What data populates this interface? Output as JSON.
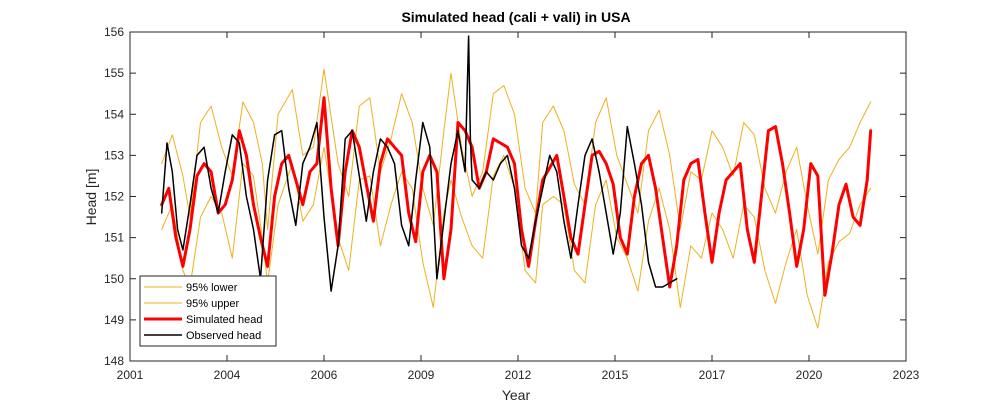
{
  "chart_data": {
    "type": "line",
    "title": "Simulated head (cali + vali) in USA",
    "xlabel": "Year",
    "ylabel": "Head [m]",
    "xlim": [
      2001,
      2023
    ],
    "ylim": [
      148,
      156
    ],
    "x_ticks": [
      {
        "value": 2001.0,
        "label": "2001"
      },
      {
        "value": 2003.75,
        "label": "2004"
      },
      {
        "value": 2006.5,
        "label": "2006"
      },
      {
        "value": 2009.25,
        "label": "2009"
      },
      {
        "value": 2012.0,
        "label": "2012"
      },
      {
        "value": 2014.75,
        "label": "2015"
      },
      {
        "value": 2017.5,
        "label": "2017"
      },
      {
        "value": 2020.25,
        "label": "2020"
      },
      {
        "value": 2023.0,
        "label": "2023"
      }
    ],
    "y_ticks": [
      148,
      149,
      150,
      151,
      152,
      153,
      154,
      155,
      156
    ],
    "grid": false,
    "legend_position": "bottom-left",
    "series": [
      {
        "name": "95% lower",
        "color": "#EDB120",
        "width": 1,
        "x": [
          2001.9,
          2002.2,
          2002.5,
          2002.7,
          2003.0,
          2003.3,
          2003.6,
          2003.9,
          2004.2,
          2004.5,
          2004.75,
          2004.9,
          2005.2,
          2005.6,
          2005.9,
          2006.2,
          2006.5,
          2006.9,
          2007.2,
          2007.5,
          2007.8,
          2008.1,
          2008.4,
          2008.7,
          2009.0,
          2009.3,
          2009.6,
          2009.9,
          2010.1,
          2010.4,
          2010.7,
          2011.0,
          2011.3,
          2011.6,
          2011.9,
          2012.2,
          2012.5,
          2012.7,
          2013.0,
          2013.3,
          2013.6,
          2013.9,
          2014.2,
          2014.5,
          2014.8,
          2015.1,
          2015.4,
          2015.7,
          2016.0,
          2016.3,
          2016.6,
          2016.9,
          2017.2,
          2017.5,
          2017.8,
          2018.1,
          2018.4,
          2018.7,
          2019.0,
          2019.3,
          2019.6,
          2019.9,
          2020.2,
          2020.5,
          2020.8,
          2021.1,
          2021.4,
          2021.7,
          2022.0
        ],
        "y": [
          151.2,
          151.8,
          150.2,
          149.8,
          151.5,
          152.0,
          151.6,
          150.5,
          152.8,
          152.5,
          151.0,
          149.9,
          151.8,
          152.8,
          151.4,
          151.8,
          153.2,
          151.0,
          150.2,
          152.4,
          152.5,
          150.8,
          151.8,
          152.6,
          152.2,
          150.4,
          149.3,
          151.6,
          152.4,
          151.5,
          150.8,
          150.5,
          152.5,
          153.0,
          152.2,
          150.2,
          149.9,
          151.8,
          152.0,
          151.8,
          150.2,
          149.9,
          151.8,
          152.4,
          151.0,
          150.5,
          149.7,
          151.4,
          152.2,
          151.2,
          149.3,
          150.8,
          150.5,
          151.6,
          151.2,
          150.5,
          151.8,
          151.5,
          150.2,
          149.4,
          150.4,
          151.2,
          149.6,
          148.8,
          150.4,
          150.9,
          151.1,
          151.8,
          152.2
        ]
      },
      {
        "name": "95% upper",
        "color": "#EDB120",
        "width": 1,
        "x": [
          2001.9,
          2002.2,
          2002.5,
          2002.7,
          2003.0,
          2003.3,
          2003.6,
          2003.9,
          2004.2,
          2004.5,
          2004.75,
          2004.9,
          2005.2,
          2005.6,
          2005.9,
          2006.2,
          2006.5,
          2006.9,
          2007.2,
          2007.5,
          2007.8,
          2008.1,
          2008.4,
          2008.7,
          2009.0,
          2009.3,
          2009.6,
          2009.9,
          2010.1,
          2010.4,
          2010.7,
          2011.0,
          2011.3,
          2011.6,
          2011.9,
          2012.2,
          2012.5,
          2012.7,
          2013.0,
          2013.3,
          2013.6,
          2013.9,
          2014.2,
          2014.5,
          2014.8,
          2015.1,
          2015.4,
          2015.7,
          2016.0,
          2016.3,
          2016.6,
          2016.9,
          2017.2,
          2017.5,
          2017.8,
          2018.1,
          2018.4,
          2018.7,
          2019.0,
          2019.3,
          2019.6,
          2019.9,
          2020.2,
          2020.5,
          2020.8,
          2021.1,
          2021.4,
          2021.7,
          2022.0
        ],
        "y": [
          152.8,
          153.5,
          152.5,
          151.5,
          153.8,
          154.2,
          153.2,
          152.5,
          154.3,
          153.8,
          152.8,
          151.2,
          154.0,
          154.6,
          153.0,
          153.2,
          155.1,
          152.8,
          152.0,
          154.2,
          154.4,
          152.6,
          153.4,
          154.5,
          153.8,
          152.2,
          151.3,
          153.6,
          155.0,
          153.2,
          152.0,
          152.6,
          154.5,
          154.7,
          154.0,
          152.2,
          151.6,
          153.8,
          154.2,
          153.6,
          152.3,
          151.8,
          153.8,
          154.4,
          153.0,
          152.3,
          151.6,
          153.6,
          154.1,
          153.0,
          151.2,
          152.6,
          152.4,
          153.6,
          153.2,
          152.5,
          153.8,
          153.5,
          152.2,
          151.6,
          152.6,
          153.2,
          151.8,
          150.6,
          152.4,
          152.9,
          153.2,
          153.8,
          154.3
        ]
      },
      {
        "name": "Simulated head",
        "color": "#FF0000",
        "width": 3,
        "x": [
          2001.9,
          2002.1,
          2002.3,
          2002.5,
          2002.7,
          2002.9,
          2003.1,
          2003.3,
          2003.5,
          2003.7,
          2003.9,
          2004.1,
          2004.3,
          2004.5,
          2004.7,
          2004.9,
          2005.1,
          2005.3,
          2005.5,
          2005.7,
          2005.9,
          2006.1,
          2006.3,
          2006.5,
          2006.7,
          2006.9,
          2007.1,
          2007.3,
          2007.5,
          2007.7,
          2007.9,
          2008.1,
          2008.3,
          2008.5,
          2008.7,
          2008.9,
          2009.1,
          2009.3,
          2009.5,
          2009.7,
          2009.9,
          2010.1,
          2010.3,
          2010.5,
          2010.7,
          2010.9,
          2011.1,
          2011.3,
          2011.5,
          2011.7,
          2011.9,
          2012.1,
          2012.3,
          2012.5,
          2012.7,
          2012.9,
          2013.1,
          2013.3,
          2013.5,
          2013.7,
          2013.9,
          2014.1,
          2014.3,
          2014.5,
          2014.7,
          2014.9,
          2015.1,
          2015.3,
          2015.5,
          2015.7,
          2015.9,
          2016.1,
          2016.3,
          2016.5,
          2016.7,
          2016.9,
          2017.1,
          2017.3,
          2017.5,
          2017.7,
          2017.9,
          2018.1,
          2018.3,
          2018.5,
          2018.7,
          2018.9,
          2019.1,
          2019.3,
          2019.5,
          2019.7,
          2019.9,
          2020.1,
          2020.3,
          2020.5,
          2020.7,
          2020.9,
          2021.1,
          2021.3,
          2021.5,
          2021.7,
          2021.9,
          2022.0
        ],
        "y": [
          151.8,
          152.2,
          151.0,
          150.3,
          151.2,
          152.5,
          152.8,
          152.6,
          151.6,
          151.8,
          152.4,
          153.6,
          153.0,
          151.8,
          151.0,
          150.3,
          152.0,
          152.8,
          153.0,
          152.4,
          151.8,
          152.6,
          152.8,
          154.4,
          152.2,
          150.8,
          152.6,
          153.6,
          153.2,
          152.3,
          151.4,
          152.8,
          153.4,
          153.2,
          153.0,
          151.6,
          150.9,
          152.6,
          153.0,
          152.6,
          150.0,
          151.2,
          153.8,
          153.6,
          153.2,
          152.2,
          152.6,
          153.4,
          153.3,
          153.2,
          152.8,
          151.2,
          150.3,
          151.4,
          152.4,
          152.7,
          153.0,
          152.0,
          151.0,
          150.6,
          151.8,
          153.0,
          153.1,
          152.8,
          152.3,
          151.0,
          150.6,
          152.0,
          152.8,
          153.0,
          152.2,
          151.0,
          149.8,
          150.8,
          152.4,
          152.8,
          152.9,
          151.6,
          150.4,
          151.6,
          152.4,
          152.6,
          152.8,
          151.2,
          150.4,
          152.0,
          153.6,
          153.7,
          152.8,
          151.6,
          150.3,
          151.2,
          152.8,
          152.5,
          149.6,
          150.6,
          151.8,
          152.3,
          151.5,
          151.3,
          152.4,
          153.6
        ]
      },
      {
        "name": "Observed head",
        "color": "#000000",
        "width": 1.5,
        "x": [
          2001.9,
          2002.05,
          2002.2,
          2002.35,
          2002.5,
          2002.7,
          2002.9,
          2003.1,
          2003.3,
          2003.5,
          2003.7,
          2003.9,
          2004.1,
          2004.3,
          2004.5,
          2004.7,
          2004.9,
          2005.1,
          2005.3,
          2005.5,
          2005.7,
          2005.9,
          2006.1,
          2006.3,
          2006.5,
          2006.7,
          2006.9,
          2007.1,
          2007.3,
          2007.5,
          2007.7,
          2007.9,
          2008.1,
          2008.3,
          2008.5,
          2008.7,
          2008.9,
          2009.1,
          2009.3,
          2009.5,
          2009.7,
          2009.9,
          2010.1,
          2010.3,
          2010.5,
          2010.6,
          2010.65,
          2010.7,
          2010.9,
          2011.1,
          2011.3,
          2011.5,
          2011.7,
          2011.9,
          2012.1,
          2012.3,
          2012.5,
          2012.7,
          2012.9,
          2013.1,
          2013.3,
          2013.5,
          2013.7,
          2013.9,
          2014.1,
          2014.3,
          2014.5,
          2014.7,
          2014.9,
          2015.1,
          2015.3,
          2015.5,
          2015.7,
          2015.9,
          2016.1,
          2016.3,
          2016.5
        ],
        "y": [
          151.6,
          153.3,
          152.6,
          151.2,
          150.7,
          151.8,
          153.0,
          153.2,
          152.2,
          151.6,
          152.6,
          153.5,
          153.3,
          152.0,
          151.2,
          150.0,
          152.4,
          153.5,
          153.6,
          152.2,
          151.3,
          152.8,
          153.2,
          153.8,
          151.5,
          149.7,
          150.8,
          153.4,
          153.6,
          152.5,
          151.4,
          152.6,
          153.4,
          153.2,
          152.8,
          151.3,
          150.8,
          152.4,
          153.8,
          153.2,
          150.0,
          151.4,
          152.8,
          153.6,
          152.6,
          155.9,
          153.4,
          152.4,
          152.2,
          152.6,
          152.4,
          152.8,
          153.0,
          152.2,
          150.8,
          150.5,
          151.4,
          152.2,
          153.0,
          152.6,
          151.4,
          150.5,
          151.8,
          153.0,
          153.4,
          152.6,
          151.6,
          150.6,
          151.6,
          153.7,
          152.8,
          151.8,
          150.4,
          149.8,
          149.8,
          149.9,
          150.0
        ]
      }
    ]
  }
}
